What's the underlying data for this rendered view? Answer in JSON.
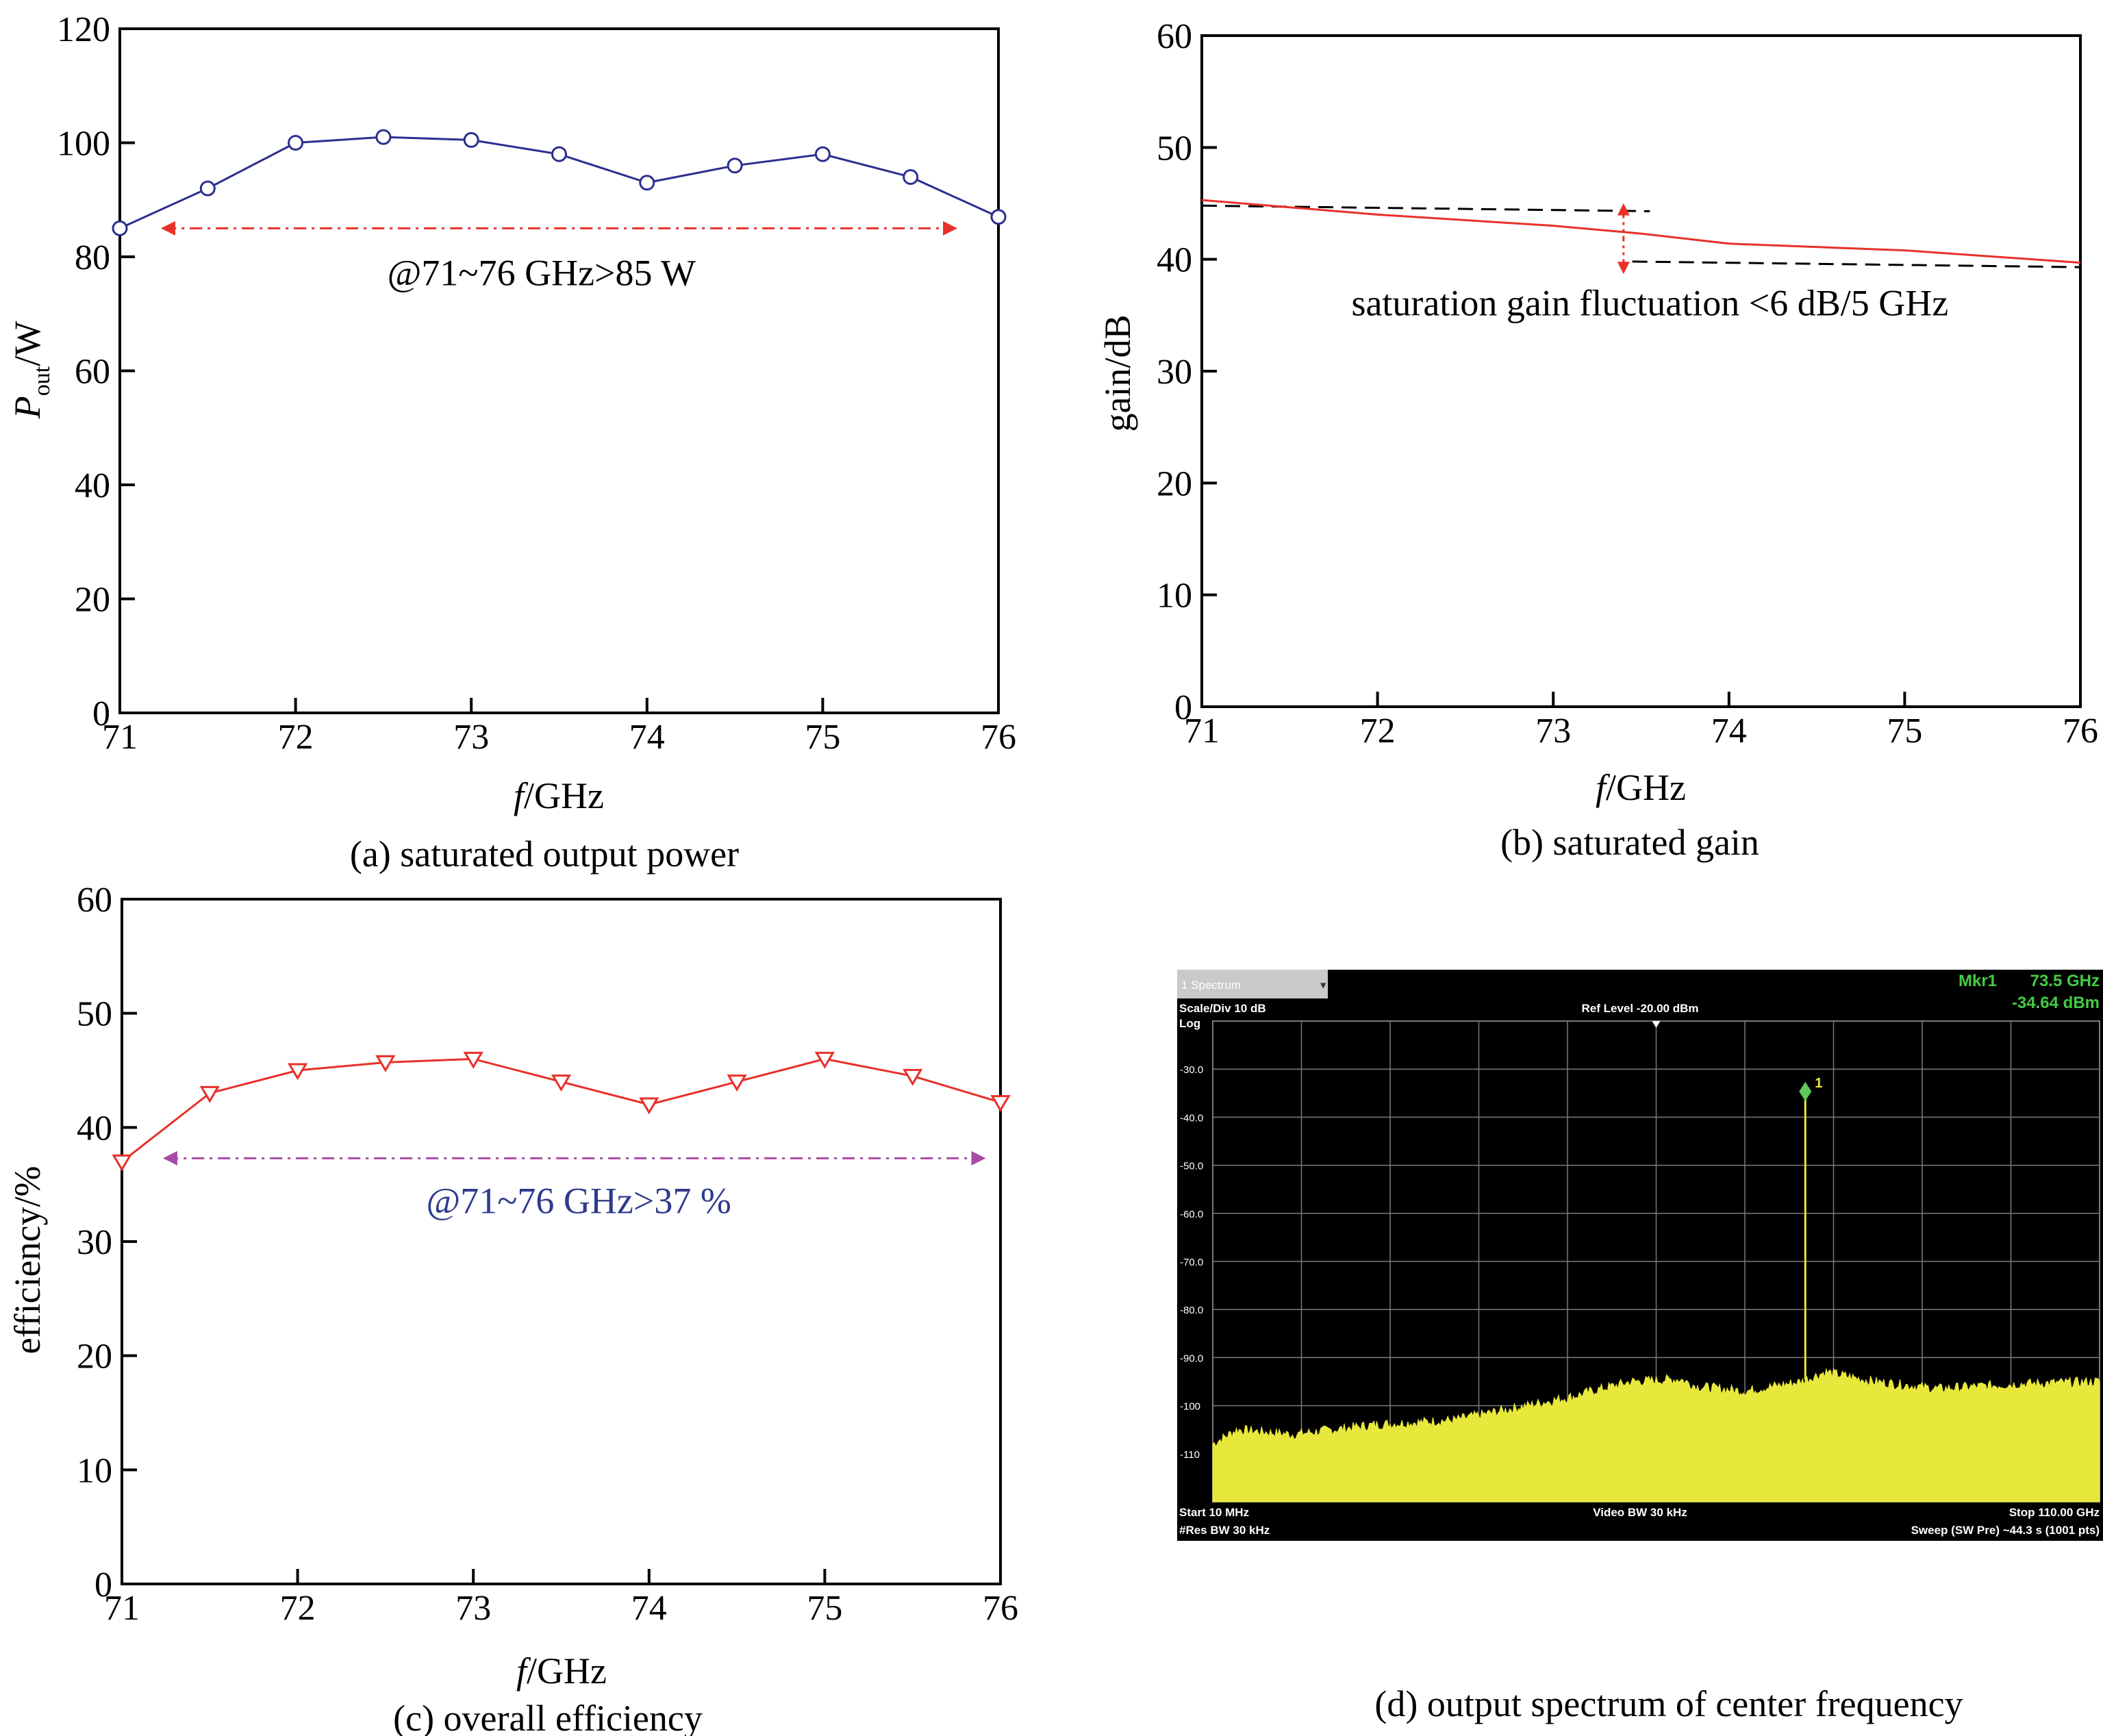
{
  "chart_data": [
    {
      "id": "a",
      "type": "line",
      "caption": "(a) saturated output power",
      "xlabel_italic": "f",
      "xlabel_rest": "/GHz",
      "ylabel_italic": "P",
      "ylabel_sub": "out",
      "ylabel_rest": "/W",
      "xlim": [
        71,
        76
      ],
      "ylim": [
        0,
        120
      ],
      "xticks": [
        71,
        72,
        73,
        74,
        75,
        76
      ],
      "yticks": [
        0,
        20,
        40,
        60,
        80,
        100,
        120
      ],
      "grid": false,
      "series": [
        {
          "marker": "circle",
          "color": "#2b2f8f",
          "x": [
            71,
            71.5,
            72,
            72.5,
            73,
            73.5,
            74,
            74.5,
            75,
            75.5,
            76
          ],
          "y": [
            85,
            92,
            100,
            101,
            100.5,
            98,
            93,
            96,
            98,
            94,
            87
          ]
        }
      ],
      "arrow": {
        "x1": 71.25,
        "x2": 75.75,
        "y": 85,
        "color": "#e8302a",
        "style": "dashdot",
        "heads": "both"
      },
      "annotation": {
        "text": "@71~76 GHz>85 W",
        "x": 73.4,
        "y": 75,
        "color": "#000000"
      }
    },
    {
      "id": "b",
      "type": "line",
      "caption": "(b) saturated gain",
      "xlabel_italic": "f",
      "xlabel_rest": "/GHz",
      "ylabel": "gain/dB",
      "xlim": [
        71,
        76
      ],
      "ylim": [
        0,
        60
      ],
      "xticks": [
        71,
        72,
        73,
        74,
        75,
        76
      ],
      "yticks": [
        0,
        10,
        20,
        30,
        40,
        50,
        60
      ],
      "grid": false,
      "series": [
        {
          "marker": "none",
          "color": "#e8302a",
          "x": [
            71,
            72,
            73,
            73.5,
            74,
            75,
            76
          ],
          "y": [
            45.3,
            44.0,
            43.0,
            42.3,
            41.4,
            40.8,
            39.7
          ]
        }
      ],
      "reference_lines": [
        {
          "x1": 71,
          "x2": 73.55,
          "y1": 44.8,
          "y2": 44.3,
          "color": "#000000",
          "style": "dashed"
        },
        {
          "x1": 73.45,
          "x2": 76,
          "y1": 39.8,
          "y2": 39.3,
          "color": "#000000",
          "style": "dashed"
        }
      ],
      "arrow": {
        "x": 73.4,
        "y1": 44.8,
        "y2": 38.9,
        "color": "#e8302a",
        "style": "dotted",
        "heads": "both"
      },
      "annotation": {
        "text": "saturation gain fluctuation <6 dB/5 GHz",
        "x": 73.55,
        "y": 35,
        "color": "#000000"
      }
    },
    {
      "id": "c",
      "type": "line",
      "caption": "(c) overall efficiency",
      "xlabel_italic": "f",
      "xlabel_rest": "/GHz",
      "ylabel": "efficiency/%",
      "xlim": [
        71,
        76
      ],
      "ylim": [
        0,
        60
      ],
      "xticks": [
        71,
        72,
        73,
        74,
        75,
        76
      ],
      "yticks": [
        0,
        10,
        20,
        30,
        40,
        50,
        60
      ],
      "grid": false,
      "series": [
        {
          "marker": "triangle-down",
          "color": "#e8302a",
          "x": [
            71,
            71.5,
            72,
            72.5,
            73,
            73.5,
            74,
            74.5,
            75,
            75.5,
            76
          ],
          "y": [
            37,
            43,
            45,
            45.7,
            46,
            44,
            42,
            44,
            46,
            44.5,
            42.2
          ]
        }
      ],
      "arrow": {
        "x1": 71.25,
        "x2": 75.9,
        "y": 37.3,
        "color": "#a64ca6",
        "style": "dashdot",
        "heads": "both"
      },
      "annotation": {
        "text": "@71~76 GHz>37 %",
        "x": 73.6,
        "y": 32.5,
        "color": "#2e3a8c"
      }
    },
    {
      "id": "d",
      "type": "area",
      "caption": "(d) output spectrum of center frequency",
      "tab_label": "1 Spectrum",
      "marker_name": "Mkr1",
      "marker_freq": "73.5 GHz",
      "marker_level": "-34.64 dBm",
      "scale_label": "Scale/Div 10 dB",
      "scale_type": "Log",
      "ref_level": "Ref Level -20.00 dBm",
      "start": "Start 10 MHz",
      "res_bw": "#Res BW 30 kHz",
      "video_bw": "Video BW 30 kHz",
      "stop": "Stop 110.00 GHz",
      "sweep": "Sweep (SW Pre) ~44.3 s (1001 pts)",
      "marker_label": "1",
      "y_tick_labels": [
        "-30.0",
        "-40.0",
        "-50.0",
        "-60.0",
        "-70.0",
        "-80.0",
        "-90.0",
        "-100",
        "-110"
      ],
      "xlim_ghz": [
        0.01,
        110
      ],
      "ylim_dbm": [
        -20,
        -120
      ],
      "peak": {
        "x_ghz": 73.5,
        "y_dbm": -34.64
      },
      "noise_floor": {
        "x_ghz": [
          0.01,
          3,
          10,
          20,
          30,
          36,
          45,
          47,
          52,
          58,
          60,
          66,
          73,
          76,
          82,
          90,
          100,
          110
        ],
        "y_dbm": [
          -108,
          -105,
          -106,
          -104,
          -103,
          -101,
          -98,
          -97,
          -95,
          -94.5,
          -96,
          -97,
          -95,
          -93,
          -95,
          -96.5,
          -95.5,
          -95
        ]
      },
      "colors": {
        "background": "#000000",
        "trace": "#e8e83c",
        "grid": "#7a7a7a",
        "marker": "#5ec85e",
        "text": "#ffffff",
        "header_green": "#44cc44"
      }
    }
  ]
}
